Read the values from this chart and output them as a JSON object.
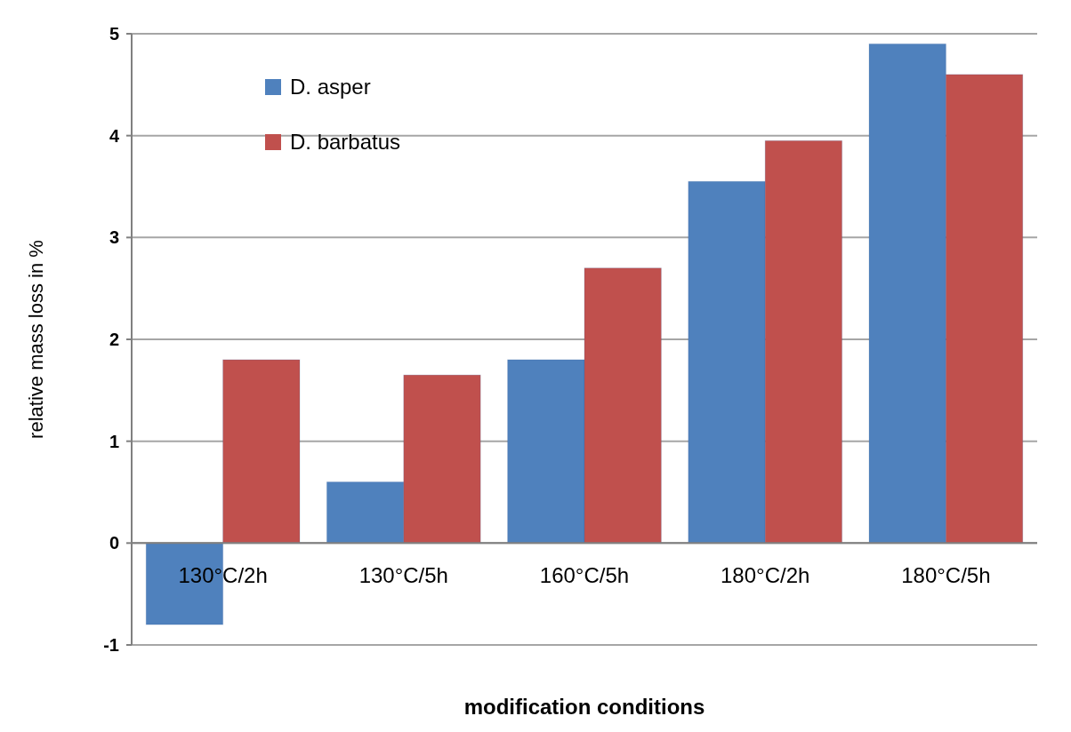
{
  "chart_data": {
    "type": "bar",
    "xlabel": "modification conditions",
    "ylabel": "relative mass loss in %",
    "categories": [
      "130°C/2h",
      "130°C/5h",
      "160°C/5h",
      "180°C/2h",
      "180°C/5h"
    ],
    "series": [
      {
        "name": "D. asper",
        "color": "#4f81bd",
        "values": [
          -0.8,
          0.6,
          1.8,
          3.55,
          4.9
        ]
      },
      {
        "name": "D. barbatus",
        "color": "#c0504d",
        "values": [
          1.8,
          1.65,
          2.7,
          3.95,
          4.6
        ]
      }
    ],
    "ylim": [
      -1,
      5
    ],
    "yticks": [
      -1,
      0,
      1,
      2,
      3,
      4,
      5
    ],
    "grid": "y",
    "legend": "top left"
  }
}
